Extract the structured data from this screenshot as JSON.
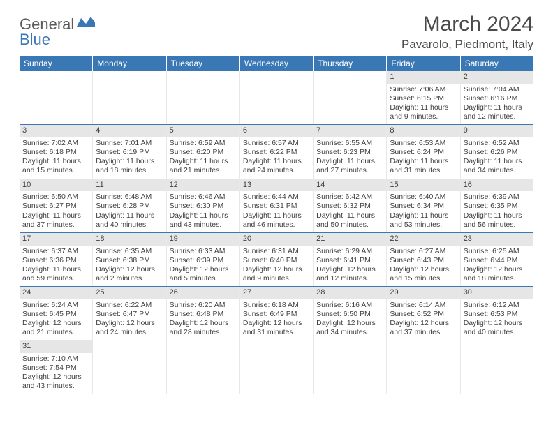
{
  "brand": {
    "part1": "General",
    "part2": "Blue"
  },
  "title": "March 2024",
  "location": "Pavarolo, Piedmont, Italy",
  "header_bg": "#3a78b5",
  "daynum_bg": "#e6e6e6",
  "border_color": "#3a78b5",
  "weekdays": [
    "Sunday",
    "Monday",
    "Tuesday",
    "Wednesday",
    "Thursday",
    "Friday",
    "Saturday"
  ],
  "weeks": [
    [
      null,
      null,
      null,
      null,
      null,
      {
        "n": "1",
        "sr": "Sunrise: 7:06 AM",
        "ss": "Sunset: 6:15 PM",
        "d1": "Daylight: 11 hours",
        "d2": "and 9 minutes."
      },
      {
        "n": "2",
        "sr": "Sunrise: 7:04 AM",
        "ss": "Sunset: 6:16 PM",
        "d1": "Daylight: 11 hours",
        "d2": "and 12 minutes."
      }
    ],
    [
      {
        "n": "3",
        "sr": "Sunrise: 7:02 AM",
        "ss": "Sunset: 6:18 PM",
        "d1": "Daylight: 11 hours",
        "d2": "and 15 minutes."
      },
      {
        "n": "4",
        "sr": "Sunrise: 7:01 AM",
        "ss": "Sunset: 6:19 PM",
        "d1": "Daylight: 11 hours",
        "d2": "and 18 minutes."
      },
      {
        "n": "5",
        "sr": "Sunrise: 6:59 AM",
        "ss": "Sunset: 6:20 PM",
        "d1": "Daylight: 11 hours",
        "d2": "and 21 minutes."
      },
      {
        "n": "6",
        "sr": "Sunrise: 6:57 AM",
        "ss": "Sunset: 6:22 PM",
        "d1": "Daylight: 11 hours",
        "d2": "and 24 minutes."
      },
      {
        "n": "7",
        "sr": "Sunrise: 6:55 AM",
        "ss": "Sunset: 6:23 PM",
        "d1": "Daylight: 11 hours",
        "d2": "and 27 minutes."
      },
      {
        "n": "8",
        "sr": "Sunrise: 6:53 AM",
        "ss": "Sunset: 6:24 PM",
        "d1": "Daylight: 11 hours",
        "d2": "and 31 minutes."
      },
      {
        "n": "9",
        "sr": "Sunrise: 6:52 AM",
        "ss": "Sunset: 6:26 PM",
        "d1": "Daylight: 11 hours",
        "d2": "and 34 minutes."
      }
    ],
    [
      {
        "n": "10",
        "sr": "Sunrise: 6:50 AM",
        "ss": "Sunset: 6:27 PM",
        "d1": "Daylight: 11 hours",
        "d2": "and 37 minutes."
      },
      {
        "n": "11",
        "sr": "Sunrise: 6:48 AM",
        "ss": "Sunset: 6:28 PM",
        "d1": "Daylight: 11 hours",
        "d2": "and 40 minutes."
      },
      {
        "n": "12",
        "sr": "Sunrise: 6:46 AM",
        "ss": "Sunset: 6:30 PM",
        "d1": "Daylight: 11 hours",
        "d2": "and 43 minutes."
      },
      {
        "n": "13",
        "sr": "Sunrise: 6:44 AM",
        "ss": "Sunset: 6:31 PM",
        "d1": "Daylight: 11 hours",
        "d2": "and 46 minutes."
      },
      {
        "n": "14",
        "sr": "Sunrise: 6:42 AM",
        "ss": "Sunset: 6:32 PM",
        "d1": "Daylight: 11 hours",
        "d2": "and 50 minutes."
      },
      {
        "n": "15",
        "sr": "Sunrise: 6:40 AM",
        "ss": "Sunset: 6:34 PM",
        "d1": "Daylight: 11 hours",
        "d2": "and 53 minutes."
      },
      {
        "n": "16",
        "sr": "Sunrise: 6:39 AM",
        "ss": "Sunset: 6:35 PM",
        "d1": "Daylight: 11 hours",
        "d2": "and 56 minutes."
      }
    ],
    [
      {
        "n": "17",
        "sr": "Sunrise: 6:37 AM",
        "ss": "Sunset: 6:36 PM",
        "d1": "Daylight: 11 hours",
        "d2": "and 59 minutes."
      },
      {
        "n": "18",
        "sr": "Sunrise: 6:35 AM",
        "ss": "Sunset: 6:38 PM",
        "d1": "Daylight: 12 hours",
        "d2": "and 2 minutes."
      },
      {
        "n": "19",
        "sr": "Sunrise: 6:33 AM",
        "ss": "Sunset: 6:39 PM",
        "d1": "Daylight: 12 hours",
        "d2": "and 5 minutes."
      },
      {
        "n": "20",
        "sr": "Sunrise: 6:31 AM",
        "ss": "Sunset: 6:40 PM",
        "d1": "Daylight: 12 hours",
        "d2": "and 9 minutes."
      },
      {
        "n": "21",
        "sr": "Sunrise: 6:29 AM",
        "ss": "Sunset: 6:41 PM",
        "d1": "Daylight: 12 hours",
        "d2": "and 12 minutes."
      },
      {
        "n": "22",
        "sr": "Sunrise: 6:27 AM",
        "ss": "Sunset: 6:43 PM",
        "d1": "Daylight: 12 hours",
        "d2": "and 15 minutes."
      },
      {
        "n": "23",
        "sr": "Sunrise: 6:25 AM",
        "ss": "Sunset: 6:44 PM",
        "d1": "Daylight: 12 hours",
        "d2": "and 18 minutes."
      }
    ],
    [
      {
        "n": "24",
        "sr": "Sunrise: 6:24 AM",
        "ss": "Sunset: 6:45 PM",
        "d1": "Daylight: 12 hours",
        "d2": "and 21 minutes."
      },
      {
        "n": "25",
        "sr": "Sunrise: 6:22 AM",
        "ss": "Sunset: 6:47 PM",
        "d1": "Daylight: 12 hours",
        "d2": "and 24 minutes."
      },
      {
        "n": "26",
        "sr": "Sunrise: 6:20 AM",
        "ss": "Sunset: 6:48 PM",
        "d1": "Daylight: 12 hours",
        "d2": "and 28 minutes."
      },
      {
        "n": "27",
        "sr": "Sunrise: 6:18 AM",
        "ss": "Sunset: 6:49 PM",
        "d1": "Daylight: 12 hours",
        "d2": "and 31 minutes."
      },
      {
        "n": "28",
        "sr": "Sunrise: 6:16 AM",
        "ss": "Sunset: 6:50 PM",
        "d1": "Daylight: 12 hours",
        "d2": "and 34 minutes."
      },
      {
        "n": "29",
        "sr": "Sunrise: 6:14 AM",
        "ss": "Sunset: 6:52 PM",
        "d1": "Daylight: 12 hours",
        "d2": "and 37 minutes."
      },
      {
        "n": "30",
        "sr": "Sunrise: 6:12 AM",
        "ss": "Sunset: 6:53 PM",
        "d1": "Daylight: 12 hours",
        "d2": "and 40 minutes."
      }
    ],
    [
      {
        "n": "31",
        "sr": "Sunrise: 7:10 AM",
        "ss": "Sunset: 7:54 PM",
        "d1": "Daylight: 12 hours",
        "d2": "and 43 minutes."
      },
      null,
      null,
      null,
      null,
      null,
      null
    ]
  ]
}
